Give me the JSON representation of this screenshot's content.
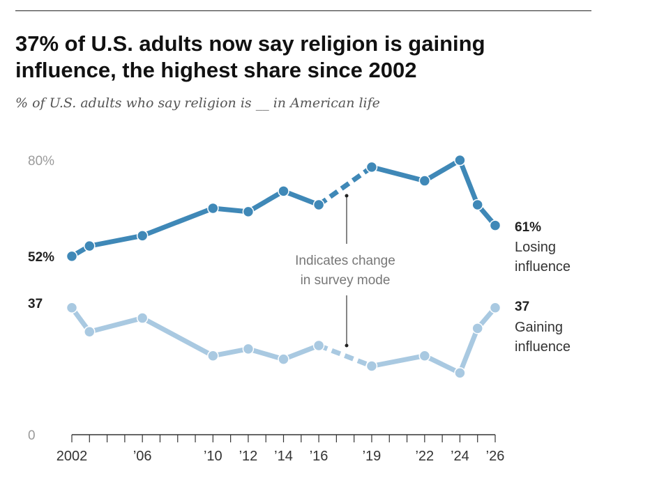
{
  "title": "37% of U.S. adults now say religion is gaining influence, the highest share since 2002",
  "subtitle": "% of U.S. adults who say religion is __ in American life",
  "colors": {
    "losing": "#3f88b7",
    "gaining": "#a9c9e1",
    "axis": "#333333",
    "ytick": "#9a9a9a",
    "annotation": "#777777"
  },
  "chart_data": {
    "type": "line",
    "title": "37% of U.S. adults now say religion is gaining influence, the highest share since 2002",
    "subtitle": "% of U.S. adults who say religion is __ in American life",
    "ylim": [
      0,
      80
    ],
    "y_ticks": [
      {
        "value": 80,
        "label": "80%"
      },
      {
        "value": 0,
        "label": "0"
      }
    ],
    "x_range": [
      2002,
      2026
    ],
    "x_tick_years": [
      2002,
      2003,
      2004,
      2005,
      2006,
      2007,
      2008,
      2009,
      2010,
      2011,
      2012,
      2013,
      2014,
      2015,
      2016,
      2017,
      2018,
      2019,
      2020,
      2021,
      2022,
      2023,
      2024,
      2025,
      2026
    ],
    "x_labels": [
      {
        "year": 2002,
        "label": "2002"
      },
      {
        "year": 2006,
        "label": "’06"
      },
      {
        "year": 2010,
        "label": "’10"
      },
      {
        "year": 2012,
        "label": "’12"
      },
      {
        "year": 2014,
        "label": "’14"
      },
      {
        "year": 2016,
        "label": "’16"
      },
      {
        "year": 2019,
        "label": "’19"
      },
      {
        "year": 2022,
        "label": "’22"
      },
      {
        "year": 2024,
        "label": "’24"
      },
      {
        "year": 2026,
        "label": "’26"
      }
    ],
    "mode_change_between": [
      2016,
      2019
    ],
    "series": [
      {
        "name": "Losing influence",
        "end_value_label": "61%",
        "start_value_label": "52%",
        "x": [
          2002,
          2003,
          2006,
          2010,
          2012,
          2014,
          2016,
          2019,
          2022,
          2024,
          2025,
          2026
        ],
        "values": [
          52,
          55,
          58,
          66,
          65,
          71,
          67,
          78,
          74,
          80,
          67,
          61
        ]
      },
      {
        "name": "Gaining influence",
        "end_value_label": "37",
        "start_value_label": "37",
        "x": [
          2002,
          2003,
          2006,
          2010,
          2012,
          2014,
          2016,
          2019,
          2022,
          2024,
          2025,
          2026
        ],
        "values": [
          37,
          30,
          34,
          23,
          25,
          22,
          26,
          20,
          23,
          18,
          31,
          37
        ]
      }
    ],
    "series_labels": [
      {
        "value": "61%",
        "line1": "Losing",
        "line2": "influence"
      },
      {
        "value": "37",
        "line1": "Gaining",
        "line2": "influence"
      }
    ],
    "annotation": [
      "Indicates change",
      "in survey mode"
    ]
  }
}
